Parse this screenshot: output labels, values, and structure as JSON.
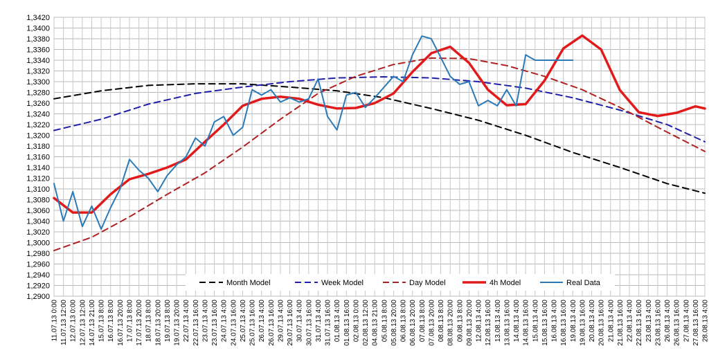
{
  "chart_data": {
    "type": "line",
    "title": "",
    "xlabel": "",
    "ylabel": "",
    "ylim": [
      1.29,
      1.342
    ],
    "grid": true,
    "legend_position": "bottom-center",
    "y_ticks": [
      "1,2900",
      "1,2920",
      "1,2940",
      "1,2960",
      "1,2980",
      "1,3000",
      "1,3020",
      "1,3040",
      "1,3060",
      "1,3080",
      "1,3100",
      "1,3120",
      "1,3140",
      "1,3160",
      "1,3180",
      "1,3200",
      "1,3220",
      "1,3240",
      "1,3260",
      "1,3280",
      "1,3300",
      "1,3320",
      "1,3340",
      "1,3360",
      "1,3380",
      "1,3400",
      "1,3420"
    ],
    "x_ticks": [
      "11.07.13 0:00",
      "11.07.13 12:00",
      "12.07.13 0:00",
      "12.07.13 12:00",
      "14.07.13 21:00",
      "15.07.13 8:00",
      "16.07.13 8:00",
      "16.07.13 20:00",
      "17.07.13 8:00",
      "17.07.13 20:00",
      "18.07.13 8:00",
      "18.07.13 20:00",
      "19.07.13 8:00",
      "19.07.13 20:00",
      "22.07.13 4:00",
      "22.07.13 16:00",
      "23.07.13 4:00",
      "23.07.13 16:00",
      "24.07.13 4:00",
      "24.07.13 16:00",
      "25.07.13 4:00",
      "25.07.13 16:00",
      "26.07.13 4:00",
      "26.07.13 16:00",
      "29.07.13 4:00",
      "29.07.13 16:00",
      "30.07.13 4:00",
      "30.07.13 16:00",
      "31.07.13 4:00",
      "31.07.13 16:00",
      "01.08.13 4:00",
      "01.08.13 16:00",
      "02.08.13 0:00",
      "02.08.13 12:00",
      "04.08.13 21:00",
      "05.08.13 8:00",
      "05.08.13 20:00",
      "06.08.13 8:00",
      "06.08.13 20:00",
      "07.08.13 8:00",
      "07.08.13 20:00",
      "08.08.13 8:00",
      "08.08.13 20:00",
      "09.08.13 8:00",
      "09.08.13 20:00",
      "12.08.13 4:00",
      "12.08.13 16:00",
      "13.08.13 4:00",
      "13.08.13 16:00",
      "14.08.13 4:00",
      "14.08.13 16:00",
      "15.08.13 4:00",
      "15.08.13 16:00",
      "16.08.13 4:00",
      "16.08.13 16:00",
      "19.08.13 4:00",
      "19.08.13 16:00",
      "20.08.13 4:00",
      "20.08.13 16:00",
      "21.08.13 4:00",
      "21.08.13 16:00",
      "22.08.13 4:00",
      "22.08.13 16:00",
      "23.08.13 4:00",
      "23.08.13 16:00",
      "26.08.13 4:00",
      "26.08.13 16:00",
      "27.08.13 4:00",
      "27.08.13 16:00",
      "28.08.13 4:00"
    ],
    "x_count": 70,
    "series": [
      {
        "name": "Month Model",
        "color": "#000000",
        "style": "dashed",
        "x": [
          0,
          5,
          10,
          15,
          20,
          25,
          30,
          35,
          40,
          45,
          50,
          55,
          60,
          65,
          69
        ],
        "y": [
          1.3268,
          1.3283,
          1.3293,
          1.3296,
          1.3296,
          1.329,
          1.3283,
          1.327,
          1.325,
          1.3228,
          1.32,
          1.3168,
          1.314,
          1.311,
          1.3092
        ]
      },
      {
        "name": "Week Model",
        "color": "#1f1fa8",
        "style": "dashed",
        "x": [
          0,
          5,
          10,
          15,
          20,
          25,
          30,
          35,
          40,
          45,
          50,
          55,
          60,
          65,
          69
        ],
        "y": [
          1.3209,
          1.323,
          1.3258,
          1.3278,
          1.329,
          1.33,
          1.3307,
          1.3309,
          1.3307,
          1.33,
          1.3288,
          1.327,
          1.3247,
          1.322,
          1.3188
        ]
      },
      {
        "name": "Day Model",
        "color": "#b02020",
        "style": "dashed",
        "x": [
          0,
          4,
          8,
          12,
          16,
          20,
          24,
          28,
          32,
          36,
          40,
          44,
          48,
          52,
          56,
          60,
          64,
          69
        ],
        "y": [
          1.2985,
          1.301,
          1.3048,
          1.309,
          1.313,
          1.3178,
          1.323,
          1.3278,
          1.331,
          1.3332,
          1.3344,
          1.3343,
          1.333,
          1.331,
          1.3285,
          1.3252,
          1.3215,
          1.317
        ]
      },
      {
        "name": "4h Model",
        "color": "#e11b1b",
        "style": "solid",
        "x": [
          0,
          2,
          4,
          6,
          8,
          10,
          12,
          14,
          16,
          18,
          20,
          22,
          24,
          26,
          28,
          30,
          32,
          34,
          36,
          38,
          40,
          42,
          44,
          46,
          48,
          50,
          52,
          54,
          56,
          58,
          60,
          62,
          64,
          66,
          68,
          69
        ],
        "y": [
          1.3083,
          1.3056,
          1.3056,
          1.309,
          1.3118,
          1.3128,
          1.314,
          1.3155,
          1.3188,
          1.322,
          1.3255,
          1.3268,
          1.3272,
          1.3268,
          1.3257,
          1.325,
          1.3251,
          1.326,
          1.3278,
          1.3318,
          1.3353,
          1.3365,
          1.3335,
          1.3285,
          1.3256,
          1.3258,
          1.3302,
          1.3362,
          1.3386,
          1.336,
          1.3284,
          1.3243,
          1.3236,
          1.3242,
          1.3254,
          1.325
        ]
      },
      {
        "name": "Real Data",
        "color": "#2a7ab8",
        "style": "solid",
        "x": [
          0,
          1,
          2,
          3,
          4,
          5,
          6,
          7,
          8,
          9,
          10,
          11,
          12,
          13,
          14,
          15,
          16,
          17,
          18,
          19,
          20,
          21,
          22,
          23,
          24,
          25,
          26,
          27,
          28,
          29,
          30,
          31,
          32,
          33,
          34,
          35,
          36,
          37,
          38,
          39,
          40,
          41,
          42,
          43,
          44,
          45,
          46,
          47,
          48,
          49,
          50,
          51,
          52,
          53,
          54,
          55
        ],
        "y": [
          1.311,
          1.304,
          1.3095,
          1.303,
          1.3068,
          1.3025,
          1.3065,
          1.31,
          1.3155,
          1.3135,
          1.312,
          1.3095,
          1.3125,
          1.3145,
          1.316,
          1.3195,
          1.318,
          1.3225,
          1.3235,
          1.32,
          1.3215,
          1.3285,
          1.3275,
          1.3285,
          1.3262,
          1.327,
          1.3262,
          1.3268,
          1.3305,
          1.3235,
          1.321,
          1.3275,
          1.328,
          1.3252,
          1.327,
          1.329,
          1.331,
          1.33,
          1.335,
          1.3385,
          1.338,
          1.3345,
          1.331,
          1.3295,
          1.33,
          1.3255,
          1.3265,
          1.3255,
          1.3285,
          1.3255,
          1.335,
          1.334,
          1.334,
          1.334,
          1.334,
          1.334
        ]
      }
    ]
  }
}
